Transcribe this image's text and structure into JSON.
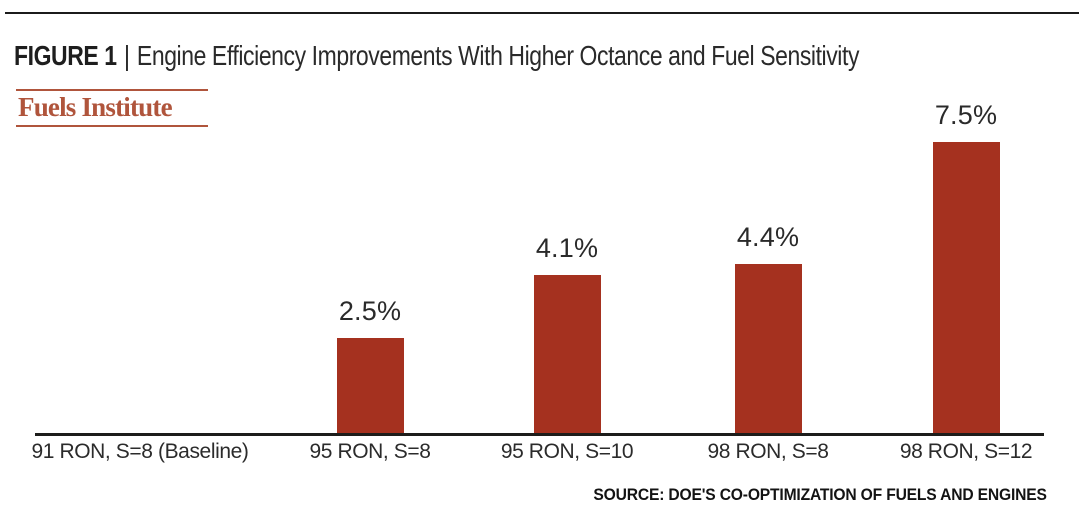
{
  "figure": {
    "label": "FIGURE 1",
    "separator": "|",
    "title": "Engine Efficiency Improvements With Higher Octance and Fuel Sensitivity"
  },
  "logo": {
    "text": "Fuels Institute"
  },
  "source": "SOURCE: DOE'S CO-OPTIMIZATION OF FUELS AND ENGINES",
  "colors": {
    "bar": "#a5311f",
    "logo_accent": "#b0553c",
    "axis": "#1d1d1b",
    "text": "#231f20"
  },
  "chart_data": {
    "type": "bar",
    "title": "Engine Efficiency Improvements With Higher Octance and Fuel Sensitivity",
    "categories": [
      "91 RON, S=8 (Baseline)",
      "95 RON, S=8",
      "95 RON, S=10",
      "98 RON, S=8",
      "98 RON, S=12"
    ],
    "values": [
      0,
      2.5,
      4.1,
      4.4,
      7.5
    ],
    "value_labels": [
      "",
      "2.5%",
      "4.1%",
      "4.4%",
      "7.5%"
    ],
    "xlabel": "",
    "ylabel": "",
    "ylim": [
      0,
      8
    ],
    "grid": false,
    "legend": false,
    "bar_color": "#a5311f",
    "source": "SOURCE: DOE'S CO-OPTIMIZATION OF FUELS AND ENGINES"
  }
}
